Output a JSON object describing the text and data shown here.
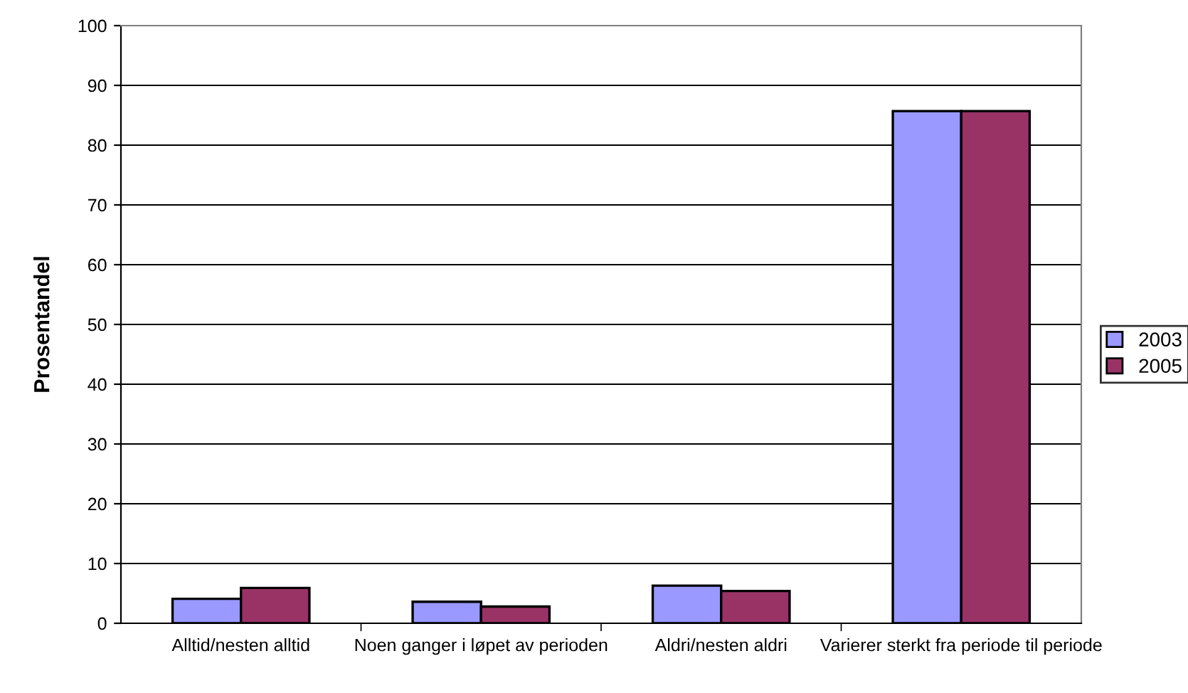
{
  "chart_data": {
    "type": "bar",
    "ylabel": "Prosentandel",
    "categories": [
      "Alltid/nesten alltid",
      "Noen ganger i løpet av perioden",
      "Aldri/nesten aldri",
      "Varierer sterkt fra periode til periode"
    ],
    "series": [
      {
        "name": "2003",
        "color": "#9999ff",
        "values": [
          4.1,
          3.6,
          6.3,
          85.7
        ]
      },
      {
        "name": "2005",
        "color": "#993366",
        "values": [
          5.9,
          2.8,
          5.4,
          85.7
        ]
      }
    ],
    "ylim": [
      0,
      100
    ],
    "yticks": [
      0,
      10,
      20,
      30,
      40,
      50,
      60,
      70,
      80,
      90,
      100
    ],
    "grid": "y",
    "legend": "right"
  }
}
